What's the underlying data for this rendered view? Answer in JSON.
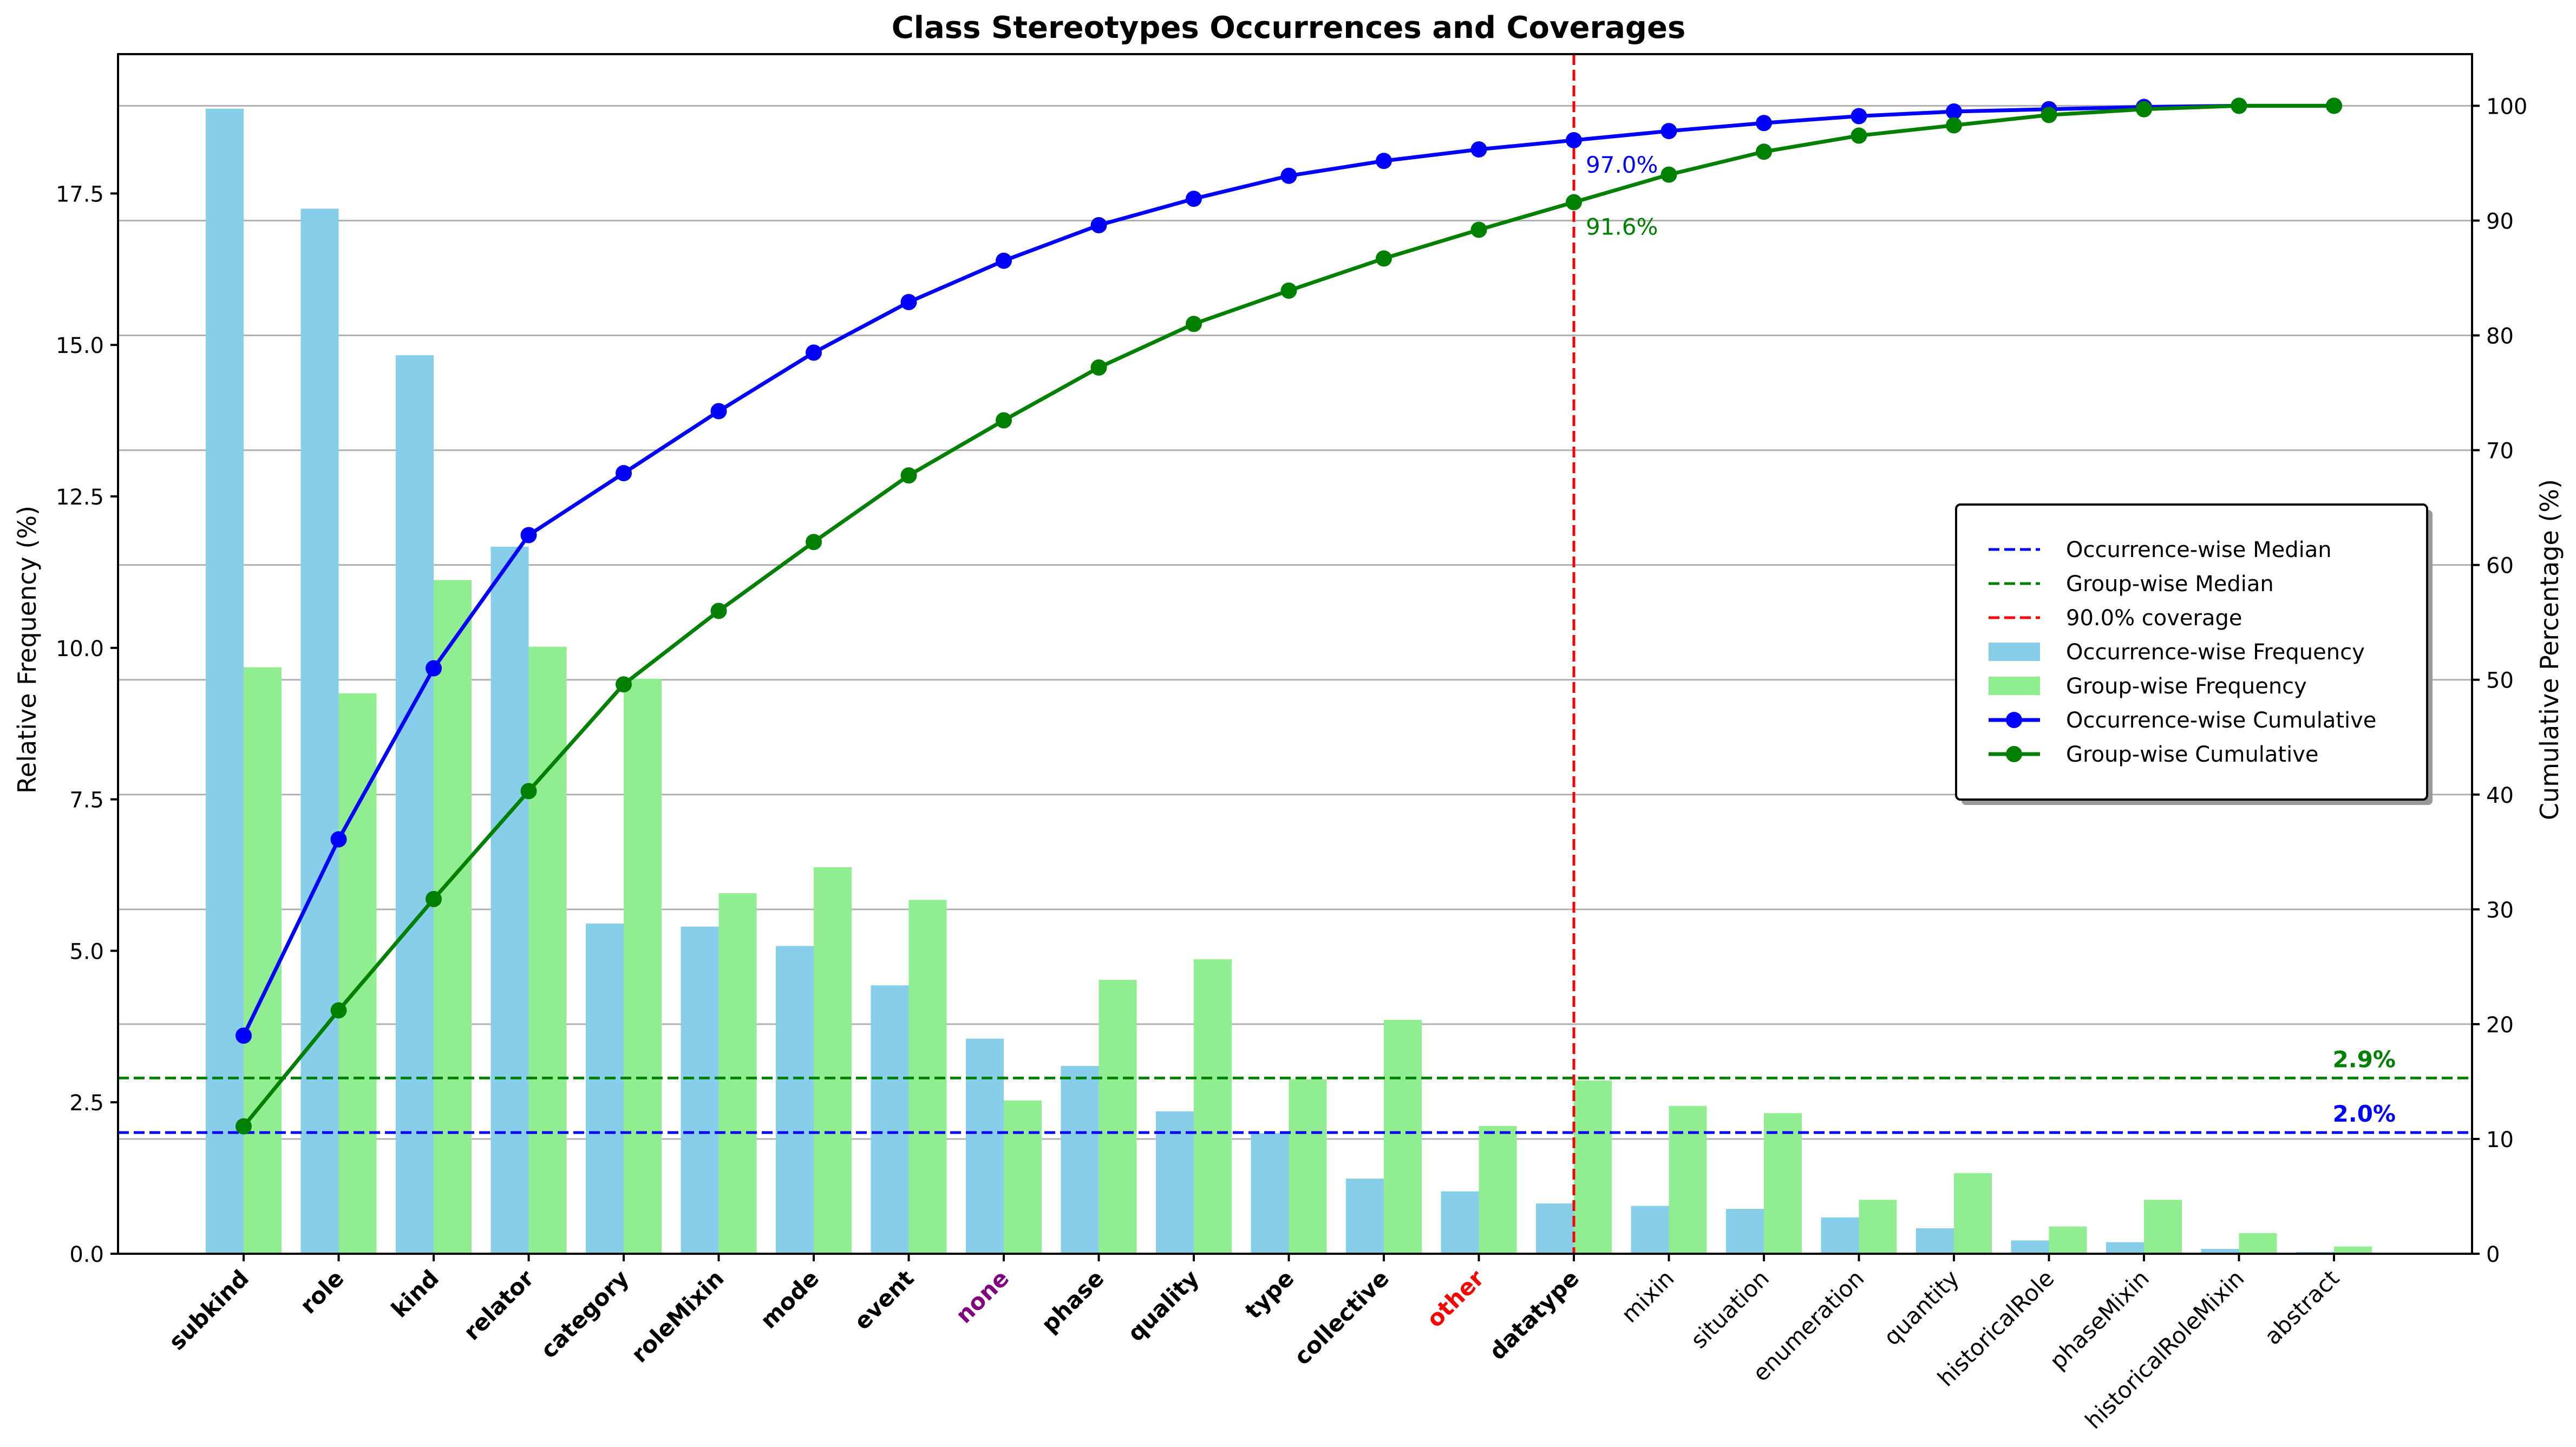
{
  "chart_data": {
    "type": "bar",
    "title": "Class Stereotypes Occurrences and Coverages",
    "ylabel": "Relative Frequency (%)",
    "y2label": "Cumulative Percentage (%)",
    "ylim": [
      0,
      19.8
    ],
    "y2lim": [
      0,
      104.5
    ],
    "yticks": [
      "0.0",
      "2.5",
      "5.0",
      "7.5",
      "10.0",
      "12.5",
      "15.0",
      "17.5"
    ],
    "y2ticks": [
      "0",
      "10",
      "20",
      "30",
      "40",
      "50",
      "60",
      "70",
      "80",
      "90",
      "100"
    ],
    "grid": "horizontal",
    "categories": [
      "subkind",
      "role",
      "kind",
      "relator",
      "category",
      "roleMixin",
      "mode",
      "event",
      "none",
      "phase",
      "quality",
      "type",
      "collective",
      "other",
      "datatype",
      "mixin",
      "situation",
      "enumeration",
      "quantity",
      "historicalRole",
      "phaseMixin",
      "historicalRoleMixin",
      "abstract"
    ],
    "category_styles": [
      {
        "weight": "bold",
        "color": "#000000"
      },
      {
        "weight": "bold",
        "color": "#000000"
      },
      {
        "weight": "bold",
        "color": "#000000"
      },
      {
        "weight": "bold",
        "color": "#000000"
      },
      {
        "weight": "bold",
        "color": "#000000"
      },
      {
        "weight": "bold",
        "color": "#000000"
      },
      {
        "weight": "bold",
        "color": "#000000"
      },
      {
        "weight": "bold",
        "color": "#000000"
      },
      {
        "weight": "bold",
        "color": "#800080"
      },
      {
        "weight": "bold",
        "color": "#000000"
      },
      {
        "weight": "bold",
        "color": "#000000"
      },
      {
        "weight": "bold",
        "color": "#000000"
      },
      {
        "weight": "bold",
        "color": "#000000"
      },
      {
        "weight": "bold",
        "color": "#ff0000"
      },
      {
        "weight": "bold",
        "color": "#000000"
      },
      {
        "weight": "normal",
        "color": "#000000"
      },
      {
        "weight": "normal",
        "color": "#000000"
      },
      {
        "weight": "normal",
        "color": "#000000"
      },
      {
        "weight": "normal",
        "color": "#000000"
      },
      {
        "weight": "normal",
        "color": "#000000"
      },
      {
        "weight": "normal",
        "color": "#000000"
      },
      {
        "weight": "normal",
        "color": "#000000"
      },
      {
        "weight": "normal",
        "color": "#000000"
      }
    ],
    "series": [
      {
        "name": "Occurrence-wise Frequency",
        "kind": "bar",
        "axis": "left",
        "color": "#87ceeb",
        "values": [
          18.9,
          17.25,
          14.83,
          11.67,
          5.45,
          5.4,
          5.08,
          4.43,
          3.55,
          3.1,
          2.35,
          1.99,
          1.24,
          1.03,
          0.83,
          0.79,
          0.74,
          0.6,
          0.42,
          0.22,
          0.19,
          0.08,
          0.03
        ]
      },
      {
        "name": "Group-wise Frequency",
        "kind": "bar",
        "axis": "left",
        "color": "#90ee90",
        "values": [
          9.68,
          9.25,
          11.12,
          10.02,
          9.49,
          5.95,
          6.38,
          5.84,
          2.53,
          4.52,
          4.86,
          2.88,
          3.86,
          2.11,
          2.86,
          2.44,
          2.32,
          0.89,
          1.33,
          0.45,
          0.89,
          0.34,
          0.12
        ]
      },
      {
        "name": "Occurrence-wise Cumulative",
        "kind": "line",
        "axis": "right",
        "color": "#0000ff",
        "values": [
          19.0,
          36.1,
          51.0,
          62.6,
          68.0,
          73.4,
          78.5,
          82.9,
          86.5,
          89.6,
          91.9,
          93.9,
          95.2,
          96.2,
          97.0,
          97.8,
          98.5,
          99.1,
          99.5,
          99.7,
          99.9,
          100.0,
          100.0
        ]
      },
      {
        "name": "Group-wise Cumulative",
        "kind": "line",
        "axis": "right",
        "color": "#008000",
        "values": [
          11.1,
          21.2,
          30.9,
          40.3,
          49.6,
          56.0,
          62.0,
          67.8,
          72.6,
          77.2,
          81.0,
          83.9,
          86.7,
          89.2,
          91.6,
          94.0,
          96.0,
          97.4,
          98.3,
          99.2,
          99.7,
          100.0,
          100.0
        ]
      }
    ],
    "reference_lines": [
      {
        "name": "Occurrence-wise Median",
        "orientation": "horizontal",
        "axis": "left",
        "value": 2.0,
        "label": "2.0%",
        "color": "#0000ff",
        "style": "dashed"
      },
      {
        "name": "Group-wise Median",
        "orientation": "horizontal",
        "axis": "left",
        "value": 2.9,
        "label": "2.9%",
        "color": "#008000",
        "style": "dashed"
      },
      {
        "name": "90.0% coverage",
        "orientation": "vertical",
        "category": "datatype",
        "color": "#ff0000",
        "style": "dashed"
      }
    ],
    "annotations": [
      {
        "text": "97.0%",
        "category": "datatype",
        "value": 97.0,
        "color": "#0000ff"
      },
      {
        "text": "91.6%",
        "category": "datatype",
        "value": 91.6,
        "color": "#008000"
      }
    ],
    "legend": {
      "placement": "center-right",
      "entries": [
        {
          "label": "Occurrence-wise Median",
          "marker": "dashed-line",
          "color": "#0000ff"
        },
        {
          "label": "Group-wise Median",
          "marker": "dashed-line",
          "color": "#008000"
        },
        {
          "label": "90.0% coverage",
          "marker": "dashed-line",
          "color": "#ff0000"
        },
        {
          "label": "Occurrence-wise Frequency",
          "marker": "bar",
          "color": "#87ceeb"
        },
        {
          "label": "Group-wise Frequency",
          "marker": "bar",
          "color": "#90ee90"
        },
        {
          "label": "Occurrence-wise Cumulative",
          "marker": "line-dot",
          "color": "#0000ff"
        },
        {
          "label": "Group-wise Cumulative",
          "marker": "line-dot",
          "color": "#008000"
        }
      ]
    }
  }
}
